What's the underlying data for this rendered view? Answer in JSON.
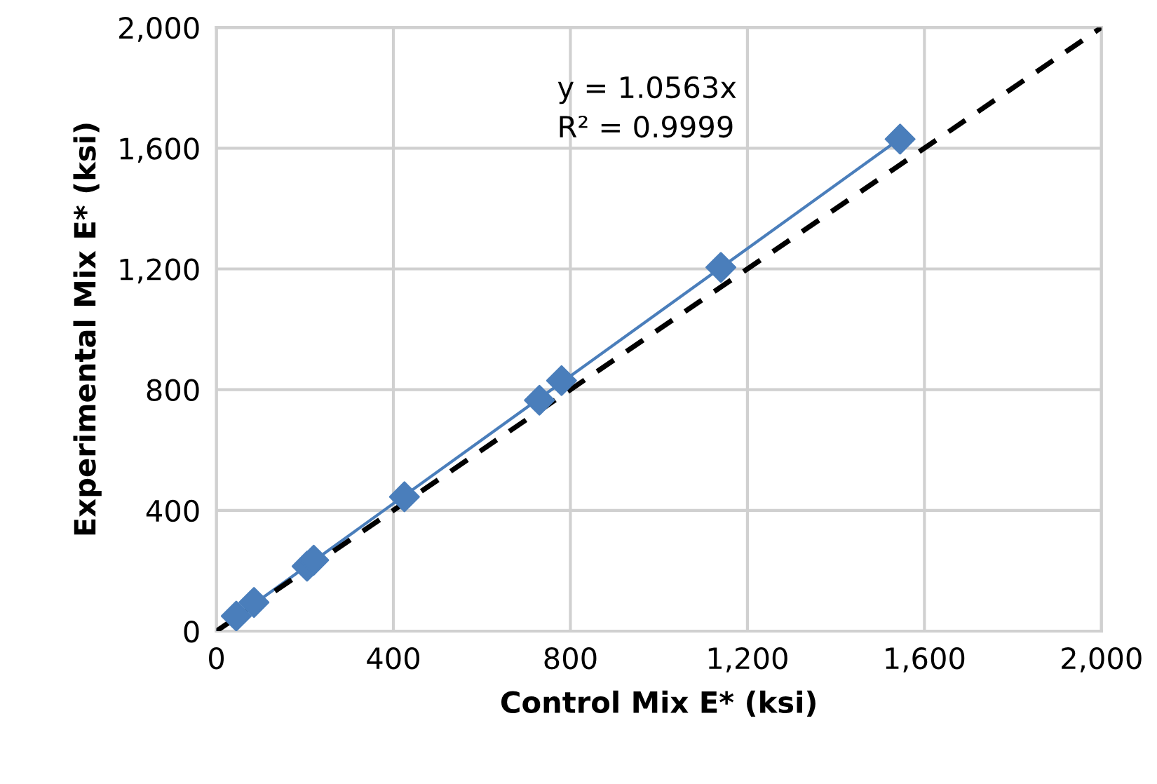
{
  "chart_data": {
    "type": "scatter",
    "xlabel": "Control Mix E* (ksi)",
    "ylabel": "Experimental Mix E* (ksi)",
    "series": [
      {
        "color": "#4a7ebb",
        "marker": "diamond",
        "x": [
          45,
          85,
          205,
          220,
          425,
          730,
          780,
          1140,
          1545
        ],
        "values": [
          50,
          95,
          215,
          235,
          445,
          765,
          830,
          1205,
          1630
        ]
      },
      {
        "type": "line",
        "color": "#4a7ebb",
        "marker": "none",
        "line_style": "solid",
        "x": [
          0,
          1545
        ],
        "values": [
          0,
          1632
        ]
      },
      {
        "type": "line",
        "color": "#000000",
        "marker": "none",
        "line_style": "dashed",
        "x": [
          0,
          2000
        ],
        "values": [
          0,
          2000
        ]
      }
    ],
    "annotations": [
      "y = 1.0563x\nR² = 0.9999"
    ],
    "xlim": [
      0,
      2000
    ],
    "ylim": [
      0,
      2000
    ],
    "xticks": [
      0,
      {
        "value": 400,
        "label": "400"
      },
      {
        "value": 800,
        "label": "800"
      },
      {
        "value": 1200,
        "label": "1,200"
      },
      {
        "value": 1600,
        "label": "1,600"
      },
      {
        "value": 2000,
        "label": "2,000"
      }
    ],
    "yticks": [
      0,
      {
        "value": 400,
        "label": "400"
      },
      {
        "value": 800,
        "label": "800"
      },
      {
        "value": 1200,
        "label": "1,200"
      },
      {
        "value": 1600,
        "label": "1,600"
      },
      {
        "value": 2000,
        "label": "2,000"
      }
    ],
    "grid": true,
    "legend": false
  }
}
